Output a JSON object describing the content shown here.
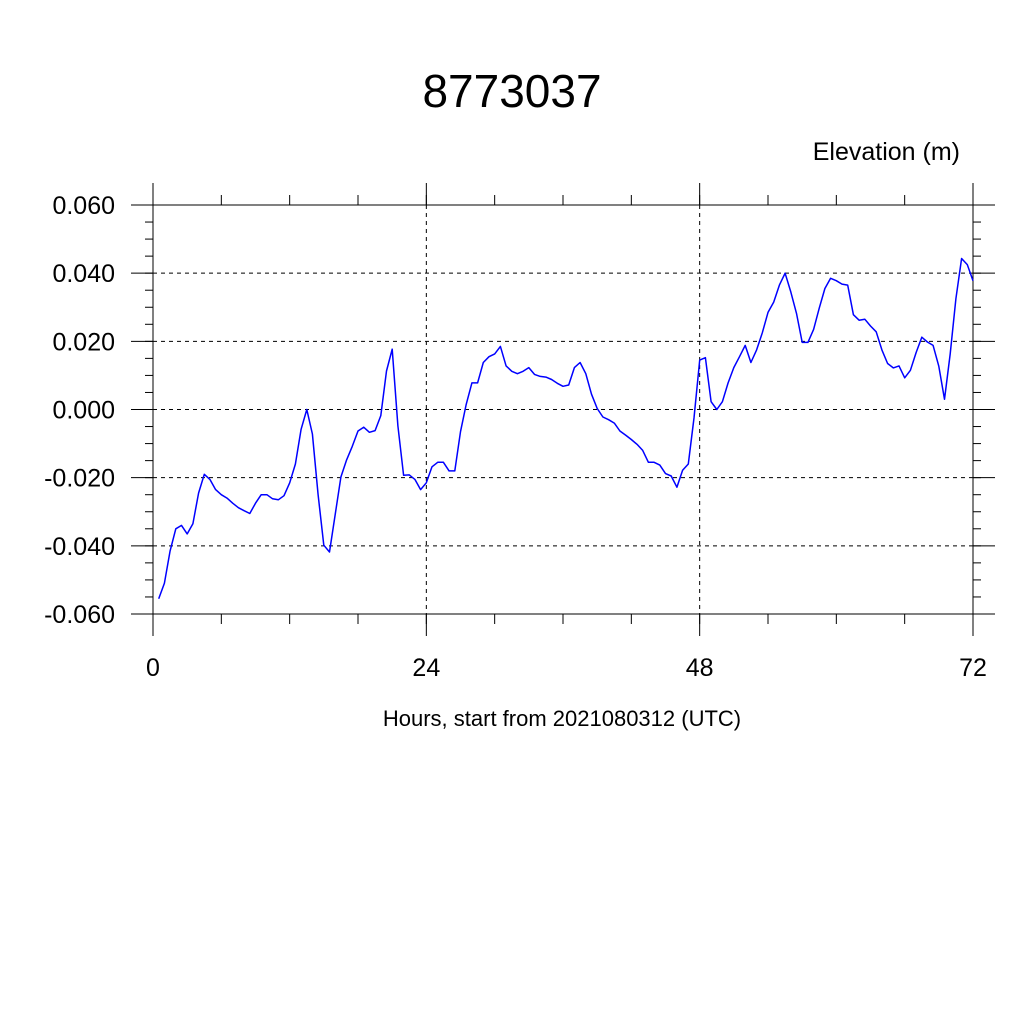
{
  "chart_data": {
    "type": "line",
    "title": "8773037",
    "ylabel": "Elevation (m)",
    "xlabel": "Hours, start from 2021080312 (UTC)",
    "xlim": [
      0,
      72
    ],
    "ylim": [
      -0.06,
      0.06
    ],
    "xticks": [
      0,
      24,
      48,
      72
    ],
    "yticks": [
      0.06,
      0.04,
      0.02,
      0.0,
      -0.02,
      -0.04,
      -0.06
    ],
    "ytick_labels": [
      "0.060",
      "0.040",
      "0.020",
      "0.000",
      "-0.020",
      "-0.040",
      "-0.060"
    ],
    "grid": true,
    "series": [
      {
        "color": "#0000ff",
        "x": [
          0.5,
          1,
          1.5,
          2,
          2.5,
          3,
          3.5,
          4,
          4.5,
          5,
          5.5,
          6,
          6.5,
          7,
          7.5,
          8,
          8.5,
          9,
          9.5,
          10,
          10.5,
          11,
          11.5,
          12,
          12.5,
          13,
          13.5,
          14,
          14.5,
          15,
          15.5,
          16,
          16.5,
          17,
          17.5,
          18,
          18.5,
          19,
          19.5,
          20,
          20.5,
          21,
          21.5,
          22,
          22.5,
          23,
          23.5,
          24,
          24.5,
          25,
          25.5,
          26,
          26.5,
          27,
          27.5,
          28,
          28.5,
          29,
          29.5,
          30,
          30.5,
          31,
          31.5,
          32,
          32.5,
          33,
          33.5,
          34,
          34.5,
          35,
          35.5,
          36,
          36.5,
          37,
          37.5,
          38,
          38.5,
          39,
          39.5,
          40,
          40.5,
          41,
          41.5,
          42,
          42.5,
          43,
          43.5,
          44,
          44.5,
          45,
          45.5,
          46,
          46.5,
          47,
          47.5,
          48,
          48.5,
          49,
          49.5,
          50,
          50.5,
          51,
          51.5,
          52,
          52.5,
          53,
          53.5,
          54,
          54.5,
          55,
          55.5,
          56,
          56.5,
          57,
          57.5,
          58,
          58.5,
          59,
          59.5,
          60,
          60.5,
          61,
          61.5,
          62,
          62.5,
          63,
          63.5,
          64,
          64.5,
          65,
          65.5,
          66,
          66.5,
          67,
          67.5,
          68,
          68.5,
          69,
          69.5,
          70,
          70.5,
          71,
          71.5,
          72
        ],
        "y": [
          -0.0555,
          -0.051,
          -0.0415,
          -0.035,
          -0.034,
          -0.0365,
          -0.0335,
          -0.0245,
          -0.019,
          -0.0205,
          -0.0235,
          -0.025,
          -0.026,
          -0.0275,
          -0.0288,
          -0.0297,
          -0.0305,
          -0.0275,
          -0.025,
          -0.025,
          -0.0262,
          -0.0265,
          -0.0253,
          -0.0215,
          -0.016,
          -0.0058,
          0.0,
          -0.0072,
          -0.025,
          -0.0398,
          -0.0418,
          -0.0308,
          -0.0198,
          -0.0148,
          -0.0108,
          -0.0063,
          -0.0052,
          -0.0067,
          -0.0062,
          -0.0018,
          0.0113,
          0.0177,
          -0.0048,
          -0.0193,
          -0.0192,
          -0.0205,
          -0.0235,
          -0.0215,
          -0.0168,
          -0.0155,
          -0.0155,
          -0.018,
          -0.018,
          -0.0065,
          0.0015,
          0.0078,
          0.0078,
          0.0138,
          0.0155,
          0.0163,
          0.0185,
          0.0128,
          0.0112,
          0.0105,
          0.0112,
          0.0123,
          0.0103,
          0.0097,
          0.0095,
          0.0088,
          0.0077,
          0.0068,
          0.0072,
          0.0123,
          0.0138,
          0.0105,
          0.0045,
          0.0003,
          -0.0022,
          -0.003,
          -0.004,
          -0.0063,
          -0.0075,
          -0.0088,
          -0.0102,
          -0.012,
          -0.0155,
          -0.0155,
          -0.0163,
          -0.0188,
          -0.0195,
          -0.0228,
          -0.0178,
          -0.016,
          -0.0025,
          0.0145,
          0.0152,
          0.0023,
          0.0,
          0.0023,
          0.0078,
          0.0123,
          0.0155,
          0.0188,
          0.0138,
          0.0175,
          0.0225,
          0.0285,
          0.0315,
          0.0365,
          0.04,
          0.0345,
          0.0282,
          0.0197,
          0.0197,
          0.0235,
          0.0298,
          0.0355,
          0.0385,
          0.0378,
          0.0368,
          0.0365,
          0.0278,
          0.0262,
          0.0265,
          0.0245,
          0.0228,
          0.0175,
          0.0135,
          0.0122,
          0.0128,
          0.0093,
          0.0115,
          0.0167,
          0.0212,
          0.0198,
          0.0188,
          0.0127,
          0.003,
          0.0163,
          0.0325,
          0.0443,
          0.0425,
          0.0378
        ]
      }
    ]
  }
}
